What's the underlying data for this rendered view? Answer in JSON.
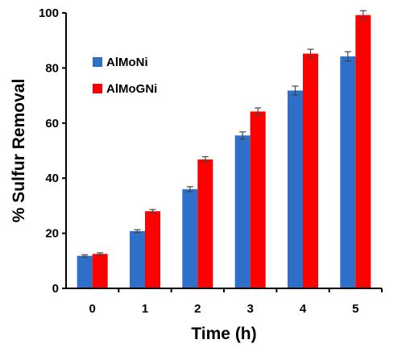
{
  "chart_data": {
    "type": "bar",
    "categories": [
      "0",
      "1",
      "2",
      "3",
      "4",
      "5"
    ],
    "series": [
      {
        "name": "AlMoNi",
        "color": "#2e6fc9",
        "values": [
          11.8,
          20.8,
          36,
          55.5,
          71.8,
          84.2
        ],
        "errors": [
          0.4,
          0.5,
          0.9,
          1.3,
          1.6,
          1.7
        ]
      },
      {
        "name": "AlMoGNi",
        "color": "#ff0000",
        "values": [
          12.5,
          28,
          46.8,
          64.2,
          85.2,
          99.2
        ],
        "errors": [
          0.4,
          0.6,
          1.0,
          1.3,
          1.6,
          1.6
        ]
      }
    ],
    "xlabel": "Time (h)",
    "ylabel": "% Sulfur Removal",
    "ylim": [
      0,
      100
    ],
    "yticks": [
      "0",
      "20",
      "40",
      "60",
      "80",
      "100"
    ],
    "legend_position": "top-left",
    "grid": false
  }
}
